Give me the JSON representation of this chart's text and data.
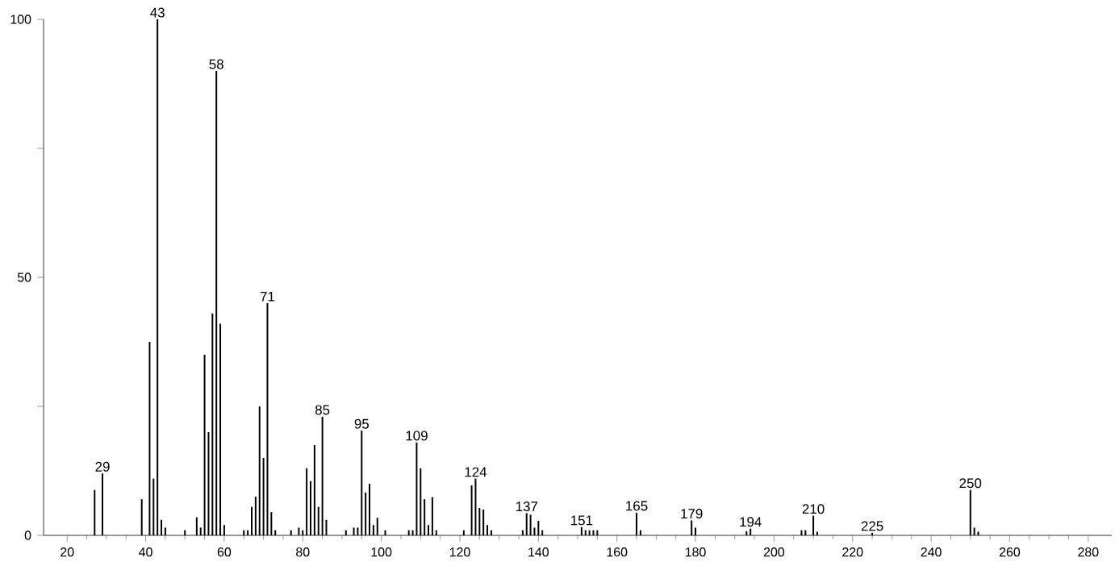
{
  "chart_data": {
    "type": "bar",
    "color": "#000000",
    "x": [
      27,
      29,
      39,
      41,
      42,
      43,
      44,
      45,
      50,
      53,
      54,
      55,
      56,
      57,
      58,
      59,
      60,
      65,
      66,
      67,
      68,
      69,
      70,
      71,
      72,
      73,
      77,
      79,
      80,
      81,
      82,
      83,
      84,
      85,
      86,
      91,
      93,
      94,
      95,
      96,
      97,
      98,
      99,
      101,
      107,
      108,
      109,
      110,
      111,
      112,
      113,
      114,
      121,
      123,
      124,
      125,
      126,
      127,
      128,
      136,
      137,
      138,
      139,
      140,
      141,
      151,
      152,
      153,
      154,
      155,
      165,
      166,
      179,
      180,
      193,
      194,
      207,
      208,
      210,
      211,
      225,
      250,
      251,
      252
    ],
    "values": [
      8.8,
      12,
      7,
      37.5,
      11,
      100,
      3,
      1.5,
      1,
      3.5,
      1.5,
      35,
      20,
      43,
      90,
      41,
      2,
      1,
      1,
      5.5,
      7.5,
      25,
      15,
      45,
      4.5,
      1,
      1,
      1.5,
      1,
      13,
      10.5,
      17.5,
      5.5,
      23,
      3,
      1,
      1.5,
      1.5,
      20.3,
      8.3,
      10,
      2,
      3.4,
      1,
      1,
      1,
      18,
      13,
      7,
      2,
      7.4,
      1,
      1,
      9.7,
      11,
      5.3,
      5,
      2,
      1,
      1,
      4.3,
      4,
      1.5,
      2.8,
      1,
      1.6,
      1,
      1,
      1,
      1,
      4.4,
      1,
      2.9,
      1.5,
      0.8,
      1.3,
      1,
      1,
      3.8,
      0.7,
      0.5,
      8.8,
      1.5,
      0.7
    ],
    "xlim": [
      14,
      286
    ],
    "ylim": [
      0,
      100
    ],
    "xticks": [
      20,
      40,
      60,
      80,
      100,
      120,
      140,
      160,
      180,
      200,
      220,
      240,
      260,
      280
    ],
    "yticks": [
      0,
      {
        "value": 25,
        "label": null
      },
      50,
      {
        "value": 75,
        "label": null
      },
      100
    ],
    "annotations": [
      {
        "text": "29",
        "x": 29,
        "y": 12
      },
      {
        "text": "43",
        "x": 43,
        "y": 100
      },
      {
        "text": "58",
        "x": 58,
        "y": 90
      },
      {
        "text": "71",
        "x": 71,
        "y": 45
      },
      {
        "text": "85",
        "x": 85,
        "y": 23
      },
      {
        "text": "95",
        "x": 95,
        "y": 20.3
      },
      {
        "text": "109",
        "x": 109,
        "y": 18
      },
      {
        "text": "124",
        "x": 124,
        "y": 11
      },
      {
        "text": "137",
        "x": 137,
        "y": 4.3
      },
      {
        "text": "151",
        "x": 151,
        "y": 1.6
      },
      {
        "text": "165",
        "x": 165,
        "y": 4.4
      },
      {
        "text": "179",
        "x": 179,
        "y": 2.9
      },
      {
        "text": "194",
        "x": 194,
        "y": 1.3
      },
      {
        "text": "210",
        "x": 210,
        "y": 3.8
      },
      {
        "text": "225",
        "x": 225,
        "y": 0.5
      },
      {
        "text": "250",
        "x": 250,
        "y": 8.8
      }
    ]
  }
}
